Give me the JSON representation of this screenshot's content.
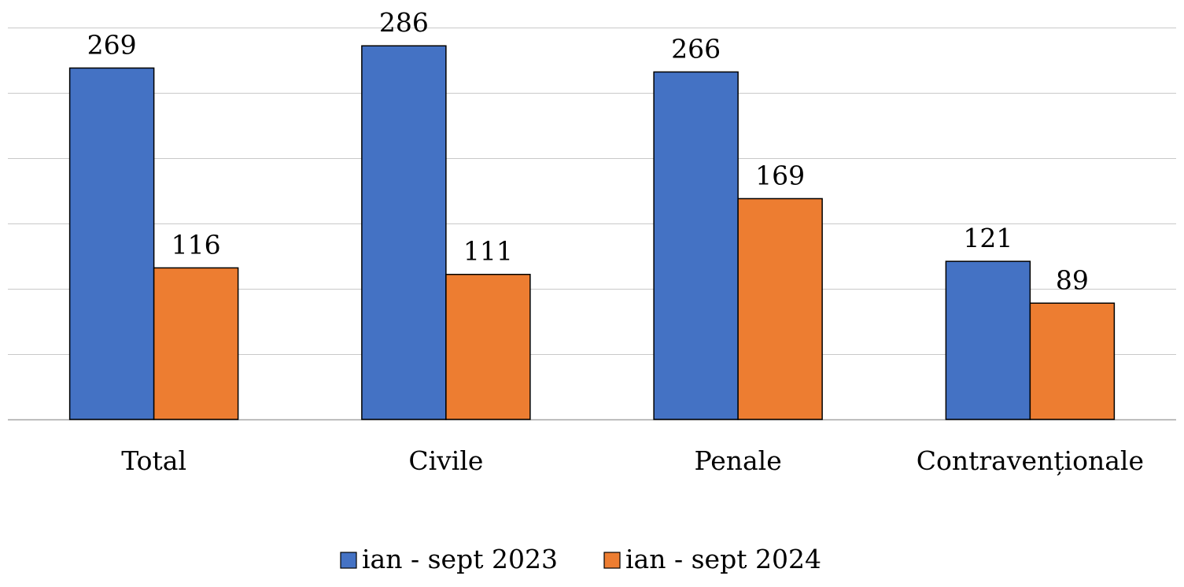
{
  "chart_data": {
    "type": "bar",
    "categories": [
      "Total",
      "Civile",
      "Penale",
      "Contravenționale"
    ],
    "series": [
      {
        "name": "ian - sept 2023",
        "values": [
          269,
          286,
          266,
          121
        ],
        "color": "#4472C4"
      },
      {
        "name": "ian - sept 2024",
        "values": [
          116,
          111,
          169,
          89
        ],
        "color": "#ED7D31"
      }
    ],
    "ylim": [
      0,
      300
    ],
    "gridlines": [
      0,
      50,
      100,
      150,
      200,
      250,
      300
    ],
    "grid": true,
    "legend_position": "bottom-center"
  }
}
